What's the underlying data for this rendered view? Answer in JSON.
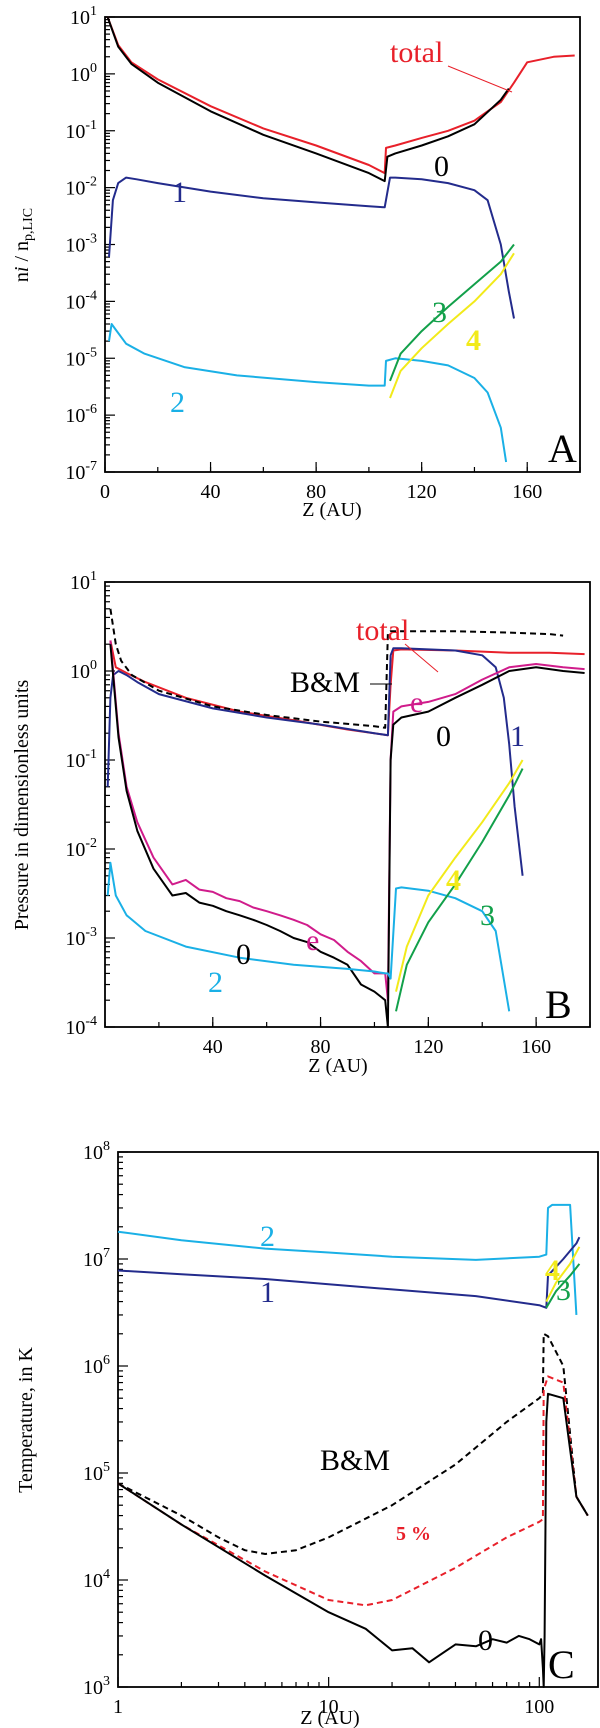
{
  "colors": {
    "total": "#e8202a",
    "s0": "#000000",
    "s1": "#232b8c",
    "s2": "#1ab0e6",
    "s3": "#12a04a",
    "s4": "#f2ea1a",
    "e": "#d01c8b",
    "bm": "#000000",
    "pct5": "#e8202a"
  },
  "chart_data": [
    {
      "type": "line",
      "panel": "A",
      "xlabel": "Z (AU)",
      "ylabel": "n_i / n_p,LIC",
      "x_ticks": [
        "0",
        "40",
        "80",
        "120",
        "160"
      ],
      "y_ticks": [
        "10^1",
        "10^0",
        "10^-1",
        "10^-2",
        "10^-3",
        "10^-4",
        "10^-5",
        "10^-6",
        "10^-7"
      ],
      "xlim": [
        0,
        180
      ],
      "ylim": [
        1e-07,
        10
      ],
      "yscale": "log",
      "series": [
        {
          "name": "total",
          "color_key": "total",
          "x": [
            1,
            5,
            10,
            20,
            40,
            60,
            80,
            100,
            106,
            106.5,
            110,
            120,
            130,
            140,
            150,
            155,
            160,
            170,
            178
          ],
          "y": [
            10,
            3.2,
            1.6,
            0.8,
            0.27,
            0.11,
            0.055,
            0.025,
            0.018,
            0.05,
            0.055,
            0.075,
            0.1,
            0.15,
            0.32,
            0.7,
            1.6,
            2.0,
            2.1
          ]
        },
        {
          "name": "0",
          "color_key": "s0",
          "x": [
            1,
            5,
            10,
            20,
            40,
            60,
            80,
            100,
            106,
            107,
            110,
            120,
            130,
            140,
            150,
            153
          ],
          "y": [
            10,
            3,
            1.5,
            0.7,
            0.22,
            0.085,
            0.04,
            0.018,
            0.013,
            0.035,
            0.04,
            0.055,
            0.08,
            0.13,
            0.35,
            0.55
          ]
        },
        {
          "name": "1",
          "color_key": "s1",
          "x": [
            1.5,
            3,
            5,
            8,
            12,
            20,
            40,
            60,
            80,
            100,
            106,
            108,
            110,
            120,
            130,
            140,
            145,
            150,
            153,
            155
          ],
          "y": [
            0.0006,
            0.006,
            0.012,
            0.015,
            0.014,
            0.012,
            0.0085,
            0.0065,
            0.0055,
            0.0047,
            0.0045,
            0.015,
            0.015,
            0.014,
            0.012,
            0.009,
            0.006,
            0.001,
            0.00015,
            5e-05
          ]
        },
        {
          "name": "2",
          "color_key": "s2",
          "x": [
            1.5,
            2.5,
            4,
            8,
            15,
            30,
            50,
            80,
            100,
            106,
            106.5,
            110,
            120,
            130,
            140,
            145,
            150,
            152
          ],
          "y": [
            2e-05,
            4e-05,
            3.2e-05,
            1.8e-05,
            1.2e-05,
            7e-06,
            5e-06,
            3.8e-06,
            3.3e-06,
            3.3e-06,
            9e-06,
            1e-05,
            9e-06,
            7.5e-06,
            4.5e-06,
            2.5e-06,
            6e-07,
            1.5e-07
          ]
        },
        {
          "name": "3",
          "color_key": "s3",
          "x": [
            108,
            112,
            120,
            130,
            140,
            150,
            155
          ],
          "y": [
            4e-06,
            1.2e-05,
            3e-05,
            8e-05,
            0.0002,
            0.0005,
            0.001
          ]
        },
        {
          "name": "4",
          "color_key": "s4",
          "x": [
            108,
            112,
            120,
            130,
            140,
            150,
            155
          ],
          "y": [
            2e-06,
            6e-06,
            1.5e-05,
            4e-05,
            0.0001,
            0.0003,
            0.0007
          ]
        }
      ],
      "labels": [
        "total",
        "0",
        "1",
        "2",
        "3",
        "4"
      ],
      "panel_letter": "A"
    },
    {
      "type": "line",
      "panel": "B",
      "xlabel": "Z (AU)",
      "ylabel": "Pressure in dimensionless units",
      "x_ticks": [
        "40",
        "80",
        "120",
        "160"
      ],
      "y_ticks": [
        "10^1",
        "10^0",
        "10^-1",
        "10^-2",
        "10^-3",
        "10^-4"
      ],
      "xlim": [
        0,
        180
      ],
      "ylim": [
        0.0001,
        10
      ],
      "yscale": "log",
      "series": [
        {
          "name": "total",
          "color_key": "total",
          "x": [
            2,
            4,
            8,
            15,
            30,
            50,
            70,
            90,
            105,
            106,
            107,
            110,
            130,
            150,
            165,
            178
          ],
          "y": [
            2.2,
            1.1,
            0.95,
            0.75,
            0.5,
            0.35,
            0.28,
            0.22,
            0.19,
            0.7,
            1.7,
            1.75,
            1.7,
            1.6,
            1.6,
            1.55
          ]
        },
        {
          "name": "B&M",
          "color_key": "bm",
          "dashed": true,
          "x": [
            2,
            4,
            6,
            10,
            20,
            40,
            60,
            80,
            100,
            104,
            105,
            106,
            110,
            130,
            150,
            165,
            170
          ],
          "y": [
            5,
            2,
            1.3,
            0.9,
            0.6,
            0.4,
            0.32,
            0.27,
            0.24,
            0.23,
            2.7,
            2.8,
            2.8,
            2.8,
            2.7,
            2.6,
            2.5
          ]
        },
        {
          "name": "1",
          "color_key": "s1",
          "x": [
            1,
            2,
            3,
            5,
            8,
            12,
            20,
            40,
            60,
            80,
            100,
            105,
            106,
            107,
            110,
            130,
            140,
            145,
            148,
            150,
            152,
            155
          ],
          "y": [
            0.05,
            0.5,
            0.9,
            1.0,
            0.9,
            0.75,
            0.55,
            0.38,
            0.3,
            0.25,
            0.2,
            0.19,
            1.5,
            1.8,
            1.8,
            1.7,
            1.5,
            1.1,
            0.5,
            0.15,
            0.03,
            0.005
          ]
        },
        {
          "name": "e",
          "color_key": "e",
          "x": [
            2,
            3,
            5,
            8,
            12,
            18,
            25,
            30,
            35,
            40,
            45,
            50,
            55,
            60,
            65,
            70,
            75,
            80,
            85,
            90,
            95,
            100,
            104,
            105,
            106,
            107,
            110,
            120,
            130,
            140,
            150,
            160,
            170,
            178
          ],
          "y": [
            2.2,
            1.0,
            0.2,
            0.05,
            0.02,
            0.008,
            0.004,
            0.0045,
            0.0035,
            0.0033,
            0.0028,
            0.0026,
            0.0022,
            0.002,
            0.0018,
            0.0016,
            0.0014,
            0.0011,
            0.00095,
            0.0007,
            0.00055,
            0.0004,
            0.0004,
            0.0002,
            0.1,
            0.35,
            0.4,
            0.45,
            0.55,
            0.8,
            1.1,
            1.2,
            1.1,
            1.05
          ]
        },
        {
          "name": "0",
          "color_key": "s0",
          "x": [
            2,
            3,
            5,
            8,
            12,
            18,
            25,
            30,
            35,
            40,
            45,
            50,
            55,
            60,
            65,
            70,
            75,
            80,
            85,
            90,
            95,
            100,
            104,
            105,
            106,
            107,
            110,
            120,
            130,
            140,
            150,
            160,
            170,
            178
          ],
          "y": [
            2.0,
            0.9,
            0.18,
            0.045,
            0.016,
            0.006,
            0.003,
            0.0032,
            0.0025,
            0.0023,
            0.002,
            0.0018,
            0.0016,
            0.0014,
            0.0012,
            0.001,
            0.0009,
            0.0007,
            0.0006,
            0.0005,
            0.0003,
            0.00025,
            0.0002,
            0.0001,
            0.1,
            0.25,
            0.3,
            0.35,
            0.5,
            0.7,
            1.0,
            1.1,
            1.0,
            0.95
          ]
        },
        {
          "name": "2",
          "color_key": "s2",
          "x": [
            1,
            2,
            4,
            8,
            15,
            30,
            50,
            70,
            90,
            100,
            104,
            105,
            106,
            108,
            110,
            120,
            130,
            140,
            145,
            150
          ],
          "y": [
            0.003,
            0.007,
            0.003,
            0.0018,
            0.0012,
            0.0008,
            0.0006,
            0.0005,
            0.00045,
            0.00042,
            0.0004,
            0.0004,
            0.00035,
            0.0036,
            0.0037,
            0.0034,
            0.0028,
            0.002,
            0.0012,
            0.00015
          ]
        },
        {
          "name": "3",
          "color_key": "s3",
          "x": [
            108,
            112,
            120,
            130,
            140,
            150,
            155
          ],
          "y": [
            0.00015,
            0.0005,
            0.0015,
            0.004,
            0.012,
            0.04,
            0.08
          ]
        },
        {
          "name": "4",
          "color_key": "s4",
          "x": [
            108,
            112,
            120,
            130,
            140,
            150,
            155
          ],
          "y": [
            0.00025,
            0.0008,
            0.003,
            0.008,
            0.02,
            0.055,
            0.1
          ]
        }
      ],
      "labels": [
        "total",
        "B&M",
        "e",
        "0",
        "1",
        "4",
        "3",
        "0",
        "e",
        "2"
      ],
      "panel_letter": "B"
    },
    {
      "type": "line",
      "panel": "C",
      "xlabel": "Z (AU)",
      "ylabel": "Temperature, in K",
      "x_ticks": [
        "1",
        "10",
        "100"
      ],
      "y_ticks": [
        "10^8",
        "10^7",
        "10^6",
        "10^5",
        "10^4",
        "10^3"
      ],
      "xscale": "log",
      "yscale": "log",
      "xlim": [
        1,
        190
      ],
      "ylim": [
        1000,
        100000000.0
      ],
      "series": [
        {
          "name": "2",
          "color_key": "s2",
          "x": [
            1,
            2,
            5,
            10,
            20,
            50,
            100,
            108,
            110,
            115,
            140,
            150
          ],
          "y": [
            18000000.0,
            15000000.0,
            12500000.0,
            11500000.0,
            10500000.0,
            9800000.0,
            10500000.0,
            11000000.0,
            30000000.0,
            32000000.0,
            32000000.0,
            3000000.0
          ]
        },
        {
          "name": "1",
          "color_key": "s1",
          "x": [
            1,
            2,
            5,
            10,
            20,
            50,
            100,
            108,
            110,
            130,
            150,
            155
          ],
          "y": [
            7800000.0,
            7200000.0,
            6500000.0,
            5800000.0,
            5200000.0,
            4500000.0,
            3700000.0,
            3500000.0,
            7000000.0,
            10000000.0,
            14000000.0,
            16000000.0
          ]
        },
        {
          "name": "4",
          "color_key": "s4",
          "x": [
            108,
            120,
            140,
            155
          ],
          "y": [
            4000000.0,
            6000000.0,
            9000000.0,
            13000000.0
          ]
        },
        {
          "name": "3",
          "color_key": "s3",
          "x": [
            108,
            120,
            140,
            155
          ],
          "y": [
            3500000.0,
            5000000.0,
            7000000.0,
            9000000.0
          ]
        },
        {
          "name": "B&M",
          "color_key": "bm",
          "dashed": true,
          "x": [
            1,
            2,
            3,
            4,
            5,
            7,
            10,
            20,
            40,
            70,
            100,
            104,
            105,
            110,
            130,
            150,
            170
          ],
          "y": [
            80000,
            40000,
            25000,
            19000,
            17500,
            19000,
            25000,
            50000,
            120000,
            300000,
            500000,
            550000,
            2000000.0,
            1900000.0,
            1000000.0,
            60000,
            40000
          ]
        },
        {
          "name": "5 %",
          "color_key": "pct5",
          "dashed": true,
          "x": [
            1,
            2,
            5,
            10,
            15,
            20,
            40,
            70,
            100,
            104,
            105,
            110,
            130,
            150,
            170
          ],
          "y": [
            80000,
            33000,
            12000,
            6500,
            5800,
            6500,
            13000,
            25000,
            35000,
            37000,
            600000,
            800000,
            700000,
            60000,
            40000
          ]
        },
        {
          "name": "0",
          "color_key": "s0",
          "x": [
            1,
            2,
            5,
            10,
            15,
            20,
            25,
            30,
            40,
            50,
            60,
            70,
            80,
            90,
            100,
            102,
            104,
            105,
            106,
            108,
            110,
            130,
            150,
            170
          ],
          "y": [
            80000,
            33000,
            11000,
            5000,
            3500,
            2200,
            2300,
            1700,
            2500,
            2400,
            2800,
            2600,
            3000,
            2800,
            2500,
            2800,
            1500,
            600,
            3000,
            300000,
            550000,
            500000,
            60000,
            40000
          ]
        }
      ],
      "labels": [
        "2",
        "1",
        "4",
        "3",
        "B&M",
        "5 %",
        "0"
      ],
      "panel_letter": "C"
    }
  ]
}
